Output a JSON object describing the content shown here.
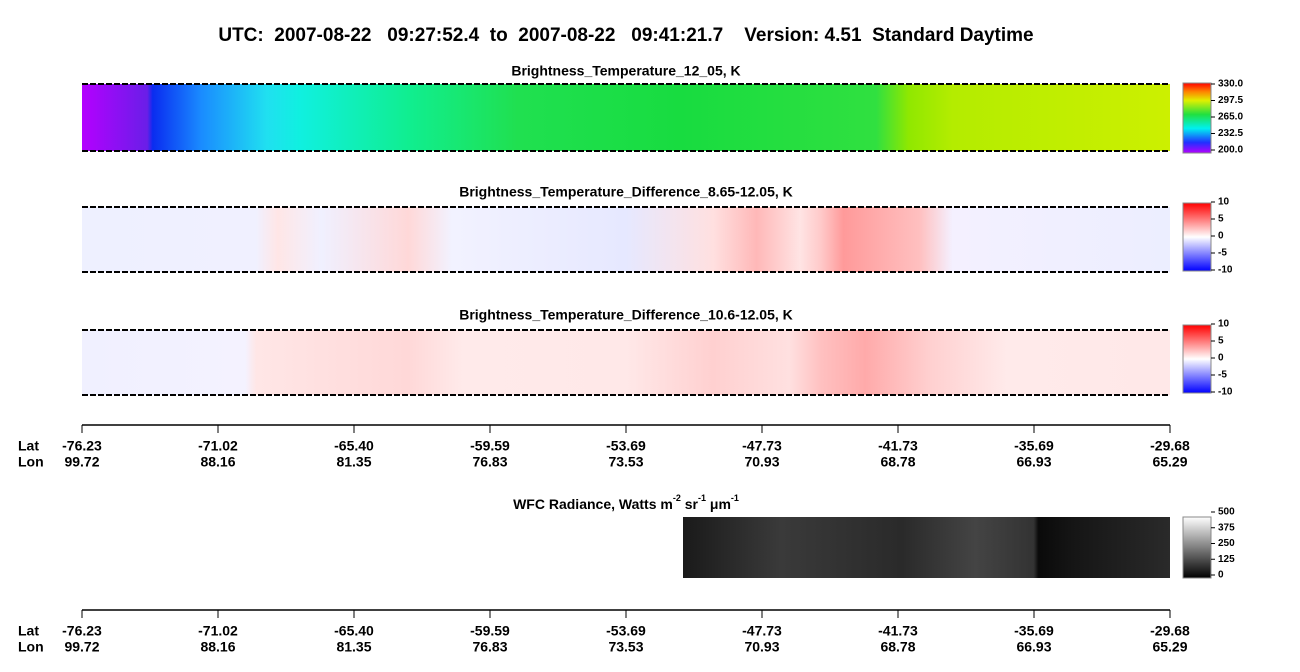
{
  "title": "UTC:  2007-08-22   09:27:52.4  to  2007-08-22   09:41:21.7    Version: 4.51  Standard Daytime",
  "panels": [
    {
      "title": "Brightness_Temperature_12_05, K",
      "colorbar": [
        "330.0",
        "297.5",
        "265.0",
        "232.5",
        "200.0"
      ]
    },
    {
      "title": "Brightness_Temperature_Difference_8.65-12.05, K",
      "colorbar": [
        "10",
        "5",
        "0",
        "-5",
        "-10"
      ]
    },
    {
      "title": "Brightness_Temperature_Difference_10.6-12.05, K",
      "colorbar": [
        "10",
        "5",
        "0",
        "-5",
        "-10"
      ]
    }
  ],
  "axis_top": {
    "row_labels": [
      "Lat",
      "Lon"
    ],
    "lat": [
      "-76.23",
      "-71.02",
      "-65.40",
      "-59.59",
      "-53.69",
      "-47.73",
      "-41.73",
      "-35.69",
      "-29.68"
    ],
    "lon": [
      "99.72",
      "88.16",
      "81.35",
      "76.83",
      "73.53",
      "70.93",
      "68.78",
      "66.93",
      "65.29"
    ]
  },
  "wfc": {
    "title_parts": [
      "WFC Radiance, Watts m",
      "-2",
      " sr",
      "-1",
      " μm",
      "-1"
    ],
    "colorbar": [
      "500",
      "375",
      "250",
      "125",
      "0"
    ]
  },
  "axis_bottom": {
    "row_labels": [
      "Lat",
      "Lon"
    ],
    "lat": [
      "-76.23",
      "-71.02",
      "-65.40",
      "-59.59",
      "-53.69",
      "-47.73",
      "-41.73",
      "-35.69",
      "-29.68"
    ],
    "lon": [
      "99.72",
      "88.16",
      "81.35",
      "76.83",
      "73.53",
      "70.93",
      "68.78",
      "66.93",
      "65.29"
    ]
  }
}
